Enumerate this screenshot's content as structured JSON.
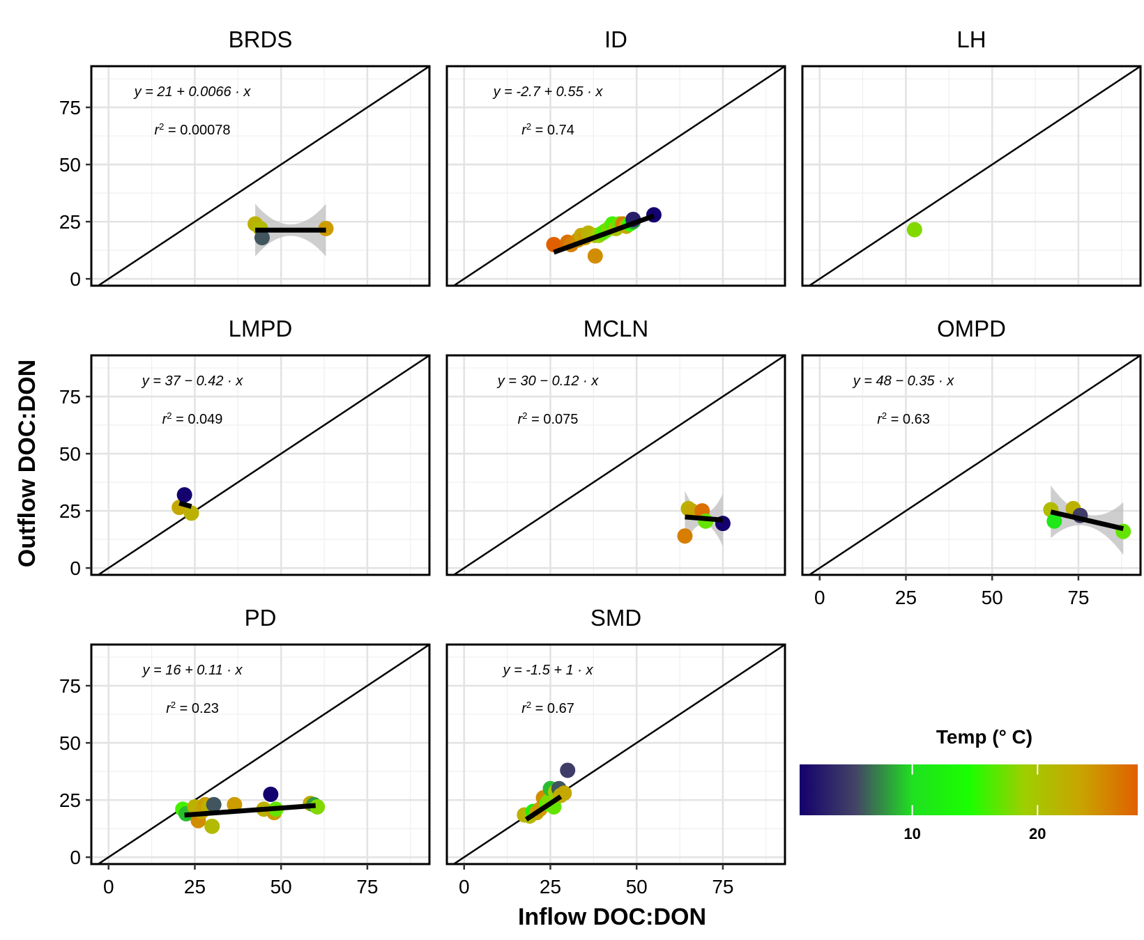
{
  "figure": {
    "xlabel": "Inflow DOC:DON",
    "ylabel": "Outflow DOC:DON",
    "legend": {
      "title": "Temp (° C)",
      "ticks": [
        10,
        20
      ],
      "range": [
        1,
        28
      ],
      "colors": [
        "#14006e",
        "#444466",
        "#20e020",
        "#1aff00",
        "#9fce00",
        "#c9a300",
        "#e06000"
      ],
      "placement": "bottom-right"
    }
  },
  "chart_data": [
    {
      "type": "scatter",
      "title": "BRDS",
      "xlim": [
        -5,
        93
      ],
      "ylim": [
        -3,
        93
      ],
      "x_ticks": [
        0,
        25,
        50,
        75
      ],
      "y_ticks": [
        0,
        25,
        50,
        75
      ],
      "reference_line": "y = x",
      "equation": "y = 21 + 0.0066 · x",
      "r2": "0.00078",
      "fit": {
        "intercept": 21.3,
        "slope": 0.0,
        "x_range": [
          42.5,
          63
        ],
        "ci": true
      },
      "points": [
        {
          "x": 42.5,
          "y": 24,
          "temp": 22
        },
        {
          "x": 44,
          "y": 22,
          "temp": 21
        },
        {
          "x": 44.5,
          "y": 18,
          "temp": 6
        },
        {
          "x": 63,
          "y": 22,
          "temp": 24
        }
      ]
    },
    {
      "type": "scatter",
      "title": "ID",
      "xlim": [
        -5,
        93
      ],
      "ylim": [
        -3,
        93
      ],
      "x_ticks": [
        0,
        25,
        50,
        75
      ],
      "y_ticks": [
        0,
        25,
        50,
        75
      ],
      "reference_line": "y = x",
      "equation": "y = -2.7 + 0.55 · x",
      "r2": "0.74",
      "fit": {
        "intercept": -2.7,
        "slope": 0.55,
        "x_range": [
          26,
          55
        ],
        "ci": false
      },
      "points": [
        {
          "x": 26,
          "y": 15,
          "temp": 28
        },
        {
          "x": 30,
          "y": 16,
          "temp": 27
        },
        {
          "x": 31,
          "y": 15,
          "temp": 26
        },
        {
          "x": 33,
          "y": 17,
          "temp": 25
        },
        {
          "x": 34,
          "y": 19,
          "temp": 23
        },
        {
          "x": 35,
          "y": 18,
          "temp": 24
        },
        {
          "x": 36,
          "y": 20,
          "temp": 22
        },
        {
          "x": 38,
          "y": 10,
          "temp": 25
        },
        {
          "x": 38,
          "y": 19,
          "temp": 21
        },
        {
          "x": 39,
          "y": 19,
          "temp": 19
        },
        {
          "x": 40,
          "y": 20,
          "temp": 17
        },
        {
          "x": 41,
          "y": 21,
          "temp": 16
        },
        {
          "x": 42,
          "y": 22,
          "temp": 18
        },
        {
          "x": 43,
          "y": 24,
          "temp": 16
        },
        {
          "x": 44,
          "y": 22,
          "temp": 20
        },
        {
          "x": 45,
          "y": 24,
          "temp": 17
        },
        {
          "x": 46,
          "y": 24,
          "temp": 26
        },
        {
          "x": 47,
          "y": 23,
          "temp": 23
        },
        {
          "x": 48,
          "y": 24,
          "temp": 15
        },
        {
          "x": 49,
          "y": 25,
          "temp": 8
        },
        {
          "x": 49,
          "y": 26,
          "temp": 3
        },
        {
          "x": 55,
          "y": 28,
          "temp": 1
        }
      ]
    },
    {
      "type": "scatter",
      "title": "LH",
      "xlim": [
        -5,
        93
      ],
      "ylim": [
        -3,
        93
      ],
      "x_ticks": [
        0,
        25,
        50,
        75
      ],
      "y_ticks": [
        0,
        25,
        50,
        75
      ],
      "reference_line": "y = x",
      "equation": "",
      "r2": "",
      "fit": null,
      "points": [
        {
          "x": 27.5,
          "y": 21.5,
          "temp": 18
        }
      ]
    },
    {
      "type": "scatter",
      "title": "LMPD",
      "xlim": [
        -5,
        93
      ],
      "ylim": [
        -3,
        93
      ],
      "x_ticks": [
        0,
        25,
        50,
        75
      ],
      "y_ticks": [
        0,
        25,
        50,
        75
      ],
      "reference_line": "y = x",
      "equation": "y = 37 − 0.42 · x",
      "r2": "0.049",
      "fit": {
        "intercept": 37,
        "slope": -0.42,
        "x_range": [
          20.5,
          24
        ],
        "ci": false
      },
      "points": [
        {
          "x": 20.5,
          "y": 26.5,
          "temp": 23
        },
        {
          "x": 22,
          "y": 32,
          "temp": 1
        },
        {
          "x": 24,
          "y": 24,
          "temp": 22
        }
      ]
    },
    {
      "type": "scatter",
      "title": "MCLN",
      "xlim": [
        -5,
        93
      ],
      "ylim": [
        -3,
        93
      ],
      "x_ticks": [
        0,
        25,
        50,
        75
      ],
      "y_ticks": [
        0,
        25,
        50,
        75
      ],
      "reference_line": "y = x",
      "equation": "y = 30 − 0.12 · x",
      "r2": "0.075",
      "fit": {
        "intercept": 30,
        "slope": -0.12,
        "x_range": [
          64,
          75
        ],
        "ci": true
      },
      "points": [
        {
          "x": 64,
          "y": 14,
          "temp": 26
        },
        {
          "x": 65,
          "y": 26,
          "temp": 22
        },
        {
          "x": 66,
          "y": 25,
          "temp": 23
        },
        {
          "x": 69,
          "y": 25,
          "temp": 27
        },
        {
          "x": 70,
          "y": 20.5,
          "temp": 17
        },
        {
          "x": 75,
          "y": 19.5,
          "temp": 1
        }
      ]
    },
    {
      "type": "scatter",
      "title": "OMPD",
      "xlim": [
        -5,
        93
      ],
      "ylim": [
        -3,
        93
      ],
      "x_ticks": [
        0,
        25,
        50,
        75
      ],
      "y_ticks": [
        0,
        25,
        50,
        75
      ],
      "reference_line": "y = x",
      "equation": "y = 48 − 0.35 · x",
      "r2": "0.63",
      "fit": {
        "intercept": 48,
        "slope": -0.35,
        "x_range": [
          67,
          88
        ],
        "ci": true
      },
      "points": [
        {
          "x": 67,
          "y": 25.5,
          "temp": 21
        },
        {
          "x": 68,
          "y": 20.5,
          "temp": 11
        },
        {
          "x": 73.5,
          "y": 26,
          "temp": 22
        },
        {
          "x": 75.5,
          "y": 23,
          "temp": 5
        },
        {
          "x": 88,
          "y": 16,
          "temp": 17
        }
      ]
    },
    {
      "type": "scatter",
      "title": "PD",
      "xlim": [
        -5,
        93
      ],
      "ylim": [
        -3,
        93
      ],
      "x_ticks": [
        0,
        25,
        50,
        75
      ],
      "y_ticks": [
        0,
        25,
        50,
        75
      ],
      "reference_line": "y = x",
      "equation": "y = 16 + 0.11 · x",
      "r2": "0.23",
      "fit": {
        "intercept": 16,
        "slope": 0.11,
        "x_range": [
          22,
          60
        ],
        "ci": false
      },
      "points": [
        {
          "x": 21.5,
          "y": 21,
          "temp": 16
        },
        {
          "x": 22.5,
          "y": 19,
          "temp": 9
        },
        {
          "x": 25,
          "y": 22,
          "temp": 22
        },
        {
          "x": 26,
          "y": 16,
          "temp": 25
        },
        {
          "x": 27,
          "y": 20,
          "temp": 23
        },
        {
          "x": 28,
          "y": 23,
          "temp": 24
        },
        {
          "x": 29,
          "y": 22,
          "temp": 22
        },
        {
          "x": 30,
          "y": 13.5,
          "temp": 21
        },
        {
          "x": 30.5,
          "y": 23,
          "temp": 6
        },
        {
          "x": 36.5,
          "y": 23,
          "temp": 24
        },
        {
          "x": 45,
          "y": 21,
          "temp": 22
        },
        {
          "x": 47,
          "y": 27.5,
          "temp": 1
        },
        {
          "x": 48,
          "y": 19.5,
          "temp": 24
        },
        {
          "x": 48.5,
          "y": 21,
          "temp": 17
        },
        {
          "x": 58.5,
          "y": 23.5,
          "temp": 23
        },
        {
          "x": 59.5,
          "y": 23,
          "temp": 8
        },
        {
          "x": 60.5,
          "y": 22,
          "temp": 18
        }
      ]
    },
    {
      "type": "scatter",
      "title": "SMD",
      "xlim": [
        -5,
        93
      ],
      "ylim": [
        -3,
        93
      ],
      "x_ticks": [
        0,
        25,
        50,
        75
      ],
      "y_ticks": [
        0,
        25,
        50,
        75
      ],
      "reference_line": "y = x",
      "equation": "y = -1.5 + 1 · x",
      "r2": "0.67",
      "fit": {
        "intercept": -1.5,
        "slope": 1.0,
        "x_range": [
          18,
          28
        ],
        "ci": false
      },
      "points": [
        {
          "x": 17.5,
          "y": 18.5,
          "temp": 22
        },
        {
          "x": 19,
          "y": 18,
          "temp": 21
        },
        {
          "x": 20,
          "y": 20,
          "temp": 12
        },
        {
          "x": 21,
          "y": 19.5,
          "temp": 23
        },
        {
          "x": 22,
          "y": 21,
          "temp": 24
        },
        {
          "x": 23,
          "y": 26,
          "temp": 25
        },
        {
          "x": 24,
          "y": 23.5,
          "temp": 16
        },
        {
          "x": 24.5,
          "y": 24.5,
          "temp": 18
        },
        {
          "x": 25,
          "y": 30,
          "temp": 9
        },
        {
          "x": 26,
          "y": 22,
          "temp": 17
        },
        {
          "x": 26.5,
          "y": 28.5,
          "temp": 19
        },
        {
          "x": 27.5,
          "y": 30,
          "temp": 6
        },
        {
          "x": 28,
          "y": 27,
          "temp": 22
        },
        {
          "x": 29,
          "y": 28,
          "temp": 23
        },
        {
          "x": 30,
          "y": 38,
          "temp": 5
        }
      ]
    }
  ]
}
